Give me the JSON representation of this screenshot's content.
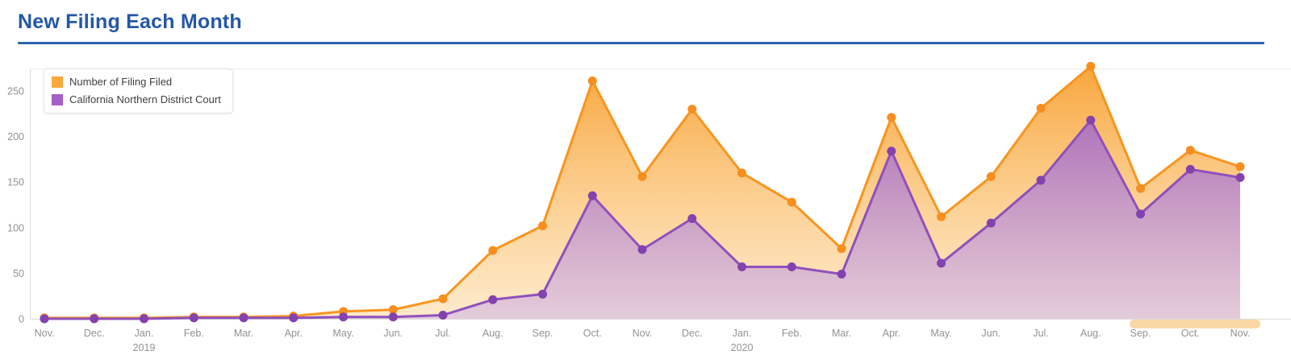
{
  "header": {
    "title": "New Filing Each Month"
  },
  "colors": {
    "title": "#2457A7",
    "divider": "#2A63AE",
    "axis_line": "#DBDBDB",
    "plot_top_line": "#EBEBEB",
    "axis_text": "#929292",
    "scrollbar_thumb": "#FAD8A6"
  },
  "chart_data": {
    "type": "area",
    "title": "New Filing Each Month",
    "x": [
      "Nov.",
      "Dec.",
      "Jan.",
      "Feb.",
      "Mar.",
      "Apr.",
      "May.",
      "Jun.",
      "Jul.",
      "Aug.",
      "Sep.",
      "Oct.",
      "Nov.",
      "Dec.",
      "Jan.",
      "Feb.",
      "Mar.",
      "Apr.",
      "May.",
      "Jun.",
      "Jul.",
      "Aug.",
      "Sep.",
      "Oct.",
      "Nov."
    ],
    "x_year_markers": [
      {
        "index": 2,
        "label": "2019"
      },
      {
        "index": 14,
        "label": "2020"
      }
    ],
    "yticks": [
      0,
      50,
      100,
      150,
      200,
      250
    ],
    "ylim": [
      0,
      275
    ],
    "grid": false,
    "legend_position": "top-left",
    "series": [
      {
        "name": "Number of Filing Filed",
        "line_color": "#F8951F",
        "marker_color": "#F78E1E",
        "legend_color": "#F9A83C",
        "fill_top": "rgba(248,162,52,0.95)",
        "fill_bottom": "rgba(252,213,150,0.5)",
        "values": [
          1,
          1,
          1,
          2,
          2,
          3,
          8,
          10,
          22,
          75,
          102,
          261,
          156,
          230,
          160,
          128,
          77,
          221,
          112,
          156,
          231,
          277,
          143,
          185,
          167
        ]
      },
      {
        "name": "California Northern District Court",
        "line_color": "#9050BC",
        "marker_color": "#8342AE",
        "legend_color": "#A55FC8",
        "fill_top": "rgba(152,86,196,0.95)",
        "fill_bottom": "rgba(206,178,230,0.55)",
        "values": [
          0,
          0,
          0,
          1,
          1,
          1,
          2,
          2,
          4,
          21,
          27,
          135,
          76,
          110,
          57,
          57,
          49,
          184,
          61,
          105,
          152,
          218,
          115,
          164,
          155
        ]
      }
    ]
  }
}
